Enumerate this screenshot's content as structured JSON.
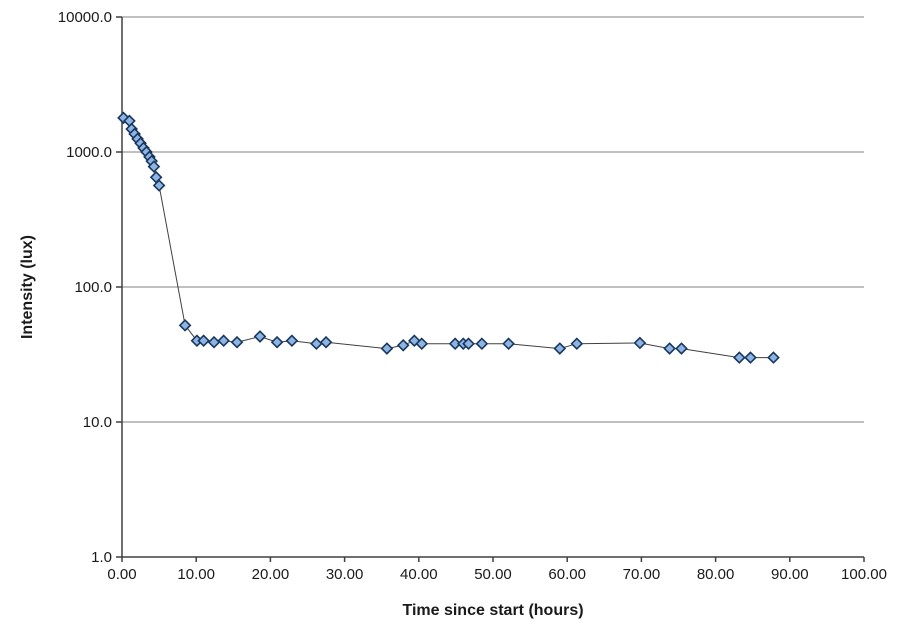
{
  "chart_data": {
    "type": "line",
    "title": "",
    "xlabel": "Time since start (hours)",
    "ylabel": "Intensity (lux)",
    "x_scale": "linear",
    "y_scale": "log",
    "xlim": [
      0,
      100
    ],
    "ylim": [
      1,
      10000
    ],
    "grid": "horizontal-only",
    "legend": "none",
    "x_ticks": [
      {
        "value": 0,
        "label": "0.00"
      },
      {
        "value": 10,
        "label": "10.00"
      },
      {
        "value": 20,
        "label": "20.00"
      },
      {
        "value": 30,
        "label": "30.00"
      },
      {
        "value": 40,
        "label": "40.00"
      },
      {
        "value": 50,
        "label": "50.00"
      },
      {
        "value": 60,
        "label": "60.00"
      },
      {
        "value": 70,
        "label": "70.00"
      },
      {
        "value": 80,
        "label": "80.00"
      },
      {
        "value": 90,
        "label": "90.00"
      },
      {
        "value": 100,
        "label": "100.00"
      }
    ],
    "y_ticks": [
      {
        "value": 1,
        "label": "1.0"
      },
      {
        "value": 10,
        "label": "10.0"
      },
      {
        "value": 100,
        "label": "100.0"
      },
      {
        "value": 1000,
        "label": "1000.0"
      },
      {
        "value": 10000,
        "label": "10000.0"
      }
    ],
    "series": [
      {
        "name": "Intensity",
        "marker": "diamond",
        "marker_fill": "#8EB4E3",
        "marker_stroke": "#17375D",
        "line_color": "#404040",
        "points": [
          [
            0.2,
            1790
          ],
          [
            1.0,
            1700
          ],
          [
            1.3,
            1480
          ],
          [
            1.7,
            1360
          ],
          [
            2.1,
            1250
          ],
          [
            2.5,
            1160
          ],
          [
            2.9,
            1070
          ],
          [
            3.3,
            1000
          ],
          [
            3.7,
            920
          ],
          [
            4.0,
            855
          ],
          [
            4.3,
            780
          ],
          [
            4.6,
            650
          ],
          [
            5.0,
            565
          ],
          [
            8.5,
            52
          ],
          [
            10.1,
            40
          ],
          [
            11.0,
            40
          ],
          [
            12.4,
            39
          ],
          [
            13.7,
            40
          ],
          [
            15.5,
            39
          ],
          [
            18.6,
            43
          ],
          [
            20.9,
            39
          ],
          [
            22.9,
            40
          ],
          [
            26.2,
            38
          ],
          [
            27.5,
            39
          ],
          [
            35.7,
            35
          ],
          [
            37.9,
            37
          ],
          [
            39.4,
            40
          ],
          [
            40.4,
            38
          ],
          [
            44.9,
            38
          ],
          [
            46.0,
            38
          ],
          [
            46.7,
            38
          ],
          [
            48.5,
            38
          ],
          [
            52.1,
            38
          ],
          [
            59.0,
            35
          ],
          [
            61.3,
            38
          ],
          [
            69.8,
            38.5
          ],
          [
            73.8,
            35
          ],
          [
            75.4,
            35
          ],
          [
            83.2,
            30
          ],
          [
            84.7,
            30
          ],
          [
            87.8,
            30
          ]
        ]
      }
    ]
  },
  "colors": {
    "background": "#FFFFFF",
    "gridline": "#808080",
    "axis": "#404040",
    "tick_text": "#1a1a1a"
  },
  "layout_values": {
    "tick_label_font_px": 15
  }
}
